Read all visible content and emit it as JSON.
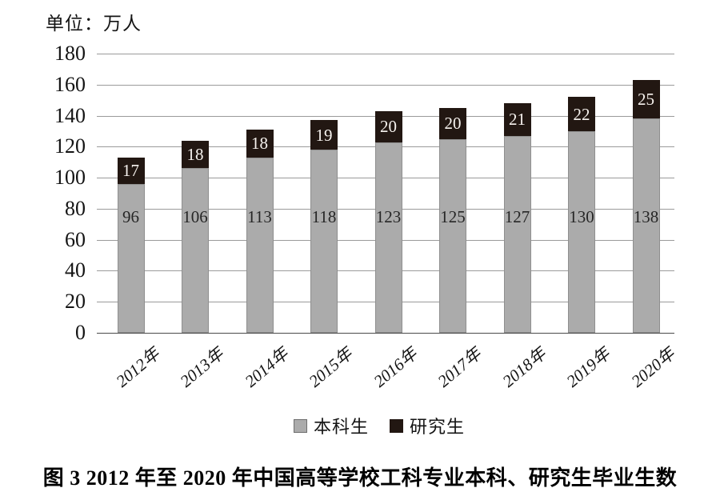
{
  "unit_label": "单位：万人",
  "caption": "图 3  2012 年至 2020 年中国高等学校工科专业本科、研究生毕业生数",
  "colors": {
    "undergrad_fill": "#ababab",
    "grad_fill": "#221712",
    "gridline": "#9b9b9b",
    "axis": "#4a4a4a",
    "value_dark": "#262626",
    "value_light": "#f6f2ee"
  },
  "chart_data": {
    "type": "bar",
    "stacked": true,
    "title": "",
    "unit_label": "单位：万人",
    "categories": [
      "2012年",
      "2013年",
      "2014年",
      "2015年",
      "2016年",
      "2017年",
      "2018年",
      "2019年",
      "2020年"
    ],
    "series": [
      {
        "name": "本科生",
        "color": "#ababab",
        "values": [
          96,
          106,
          113,
          118,
          123,
          125,
          127,
          130,
          138
        ]
      },
      {
        "name": "研究生",
        "color": "#221712",
        "values": [
          17,
          18,
          18,
          19,
          20,
          20,
          21,
          22,
          25
        ]
      }
    ],
    "totals": [
      113,
      124,
      131,
      137,
      143,
      145,
      148,
      152,
      163
    ],
    "ylim": [
      0,
      180
    ],
    "ytick_step": 20,
    "yticks": [
      0,
      20,
      40,
      60,
      80,
      100,
      120,
      140,
      160,
      180
    ],
    "grid": true,
    "legend_position": "bottom",
    "xlabel": "",
    "ylabel": "单位：万人"
  }
}
